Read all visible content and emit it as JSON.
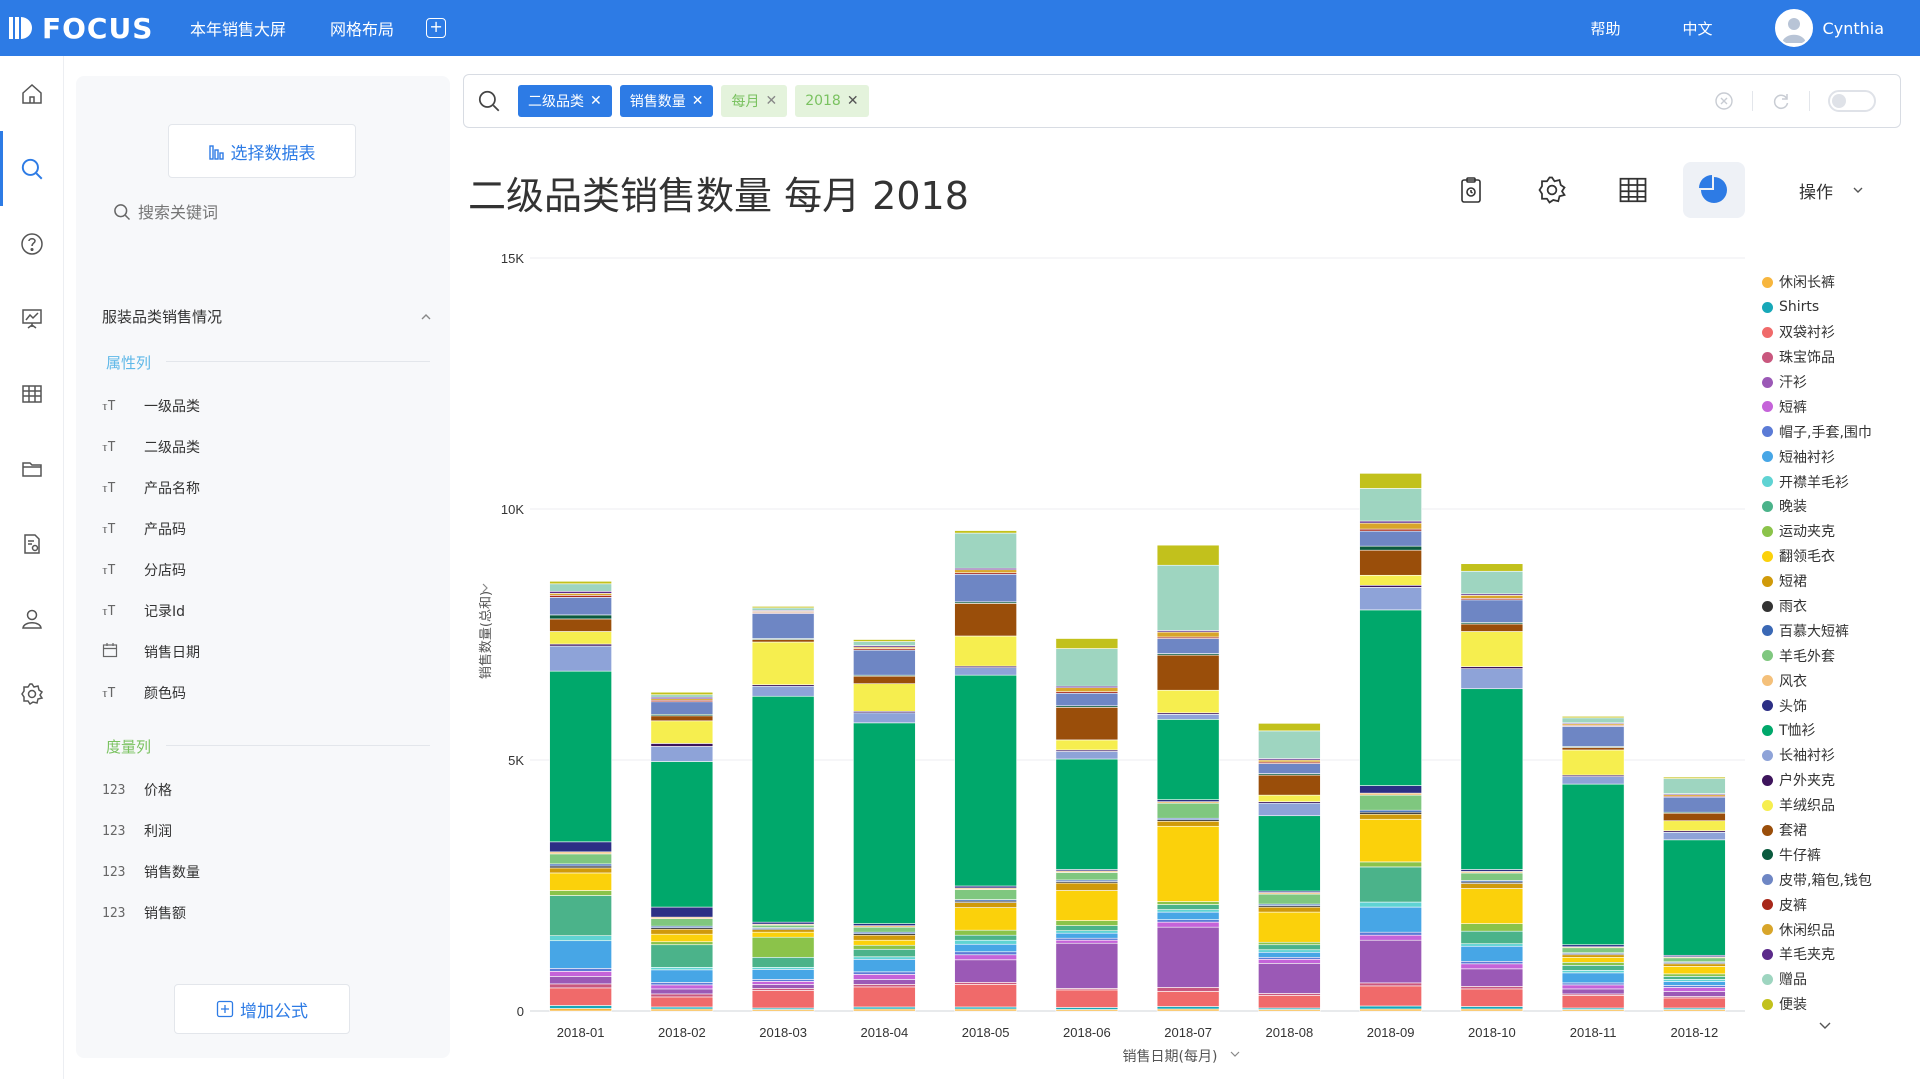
{
  "app": {
    "logo": "FOCUS",
    "nav": [
      "本年销售大屏",
      "网格布局"
    ],
    "help": "帮助",
    "lang": "中文",
    "user": "Cynthia"
  },
  "panel": {
    "select_table": "选择数据表",
    "search_placeholder": "搜索关键词",
    "dataset": "服装品类销售情况",
    "attr_label": "属性列",
    "attrs": [
      "一级品类",
      "二级品类",
      "产品名称",
      "产品码",
      "分店码",
      "记录Id",
      "销售日期",
      "颜色码"
    ],
    "measure_label": "度量列",
    "measures": [
      "价格",
      "利润",
      "销售数量",
      "销售额"
    ],
    "measure_icon": "123",
    "add_formula": "增加公式"
  },
  "search": {
    "tokens": [
      {
        "label": "二级品类",
        "style": "blue"
      },
      {
        "label": "销售数量",
        "style": "blue"
      },
      {
        "label": "每月",
        "style": "green"
      },
      {
        "label": "2018",
        "style": "green"
      }
    ]
  },
  "toolbar": {
    "ops": "操作"
  },
  "chart_data": {
    "type": "bar",
    "stacked": true,
    "title": "二级品类销售数量 每月 2018",
    "xlabel": "销售日期(每月)",
    "ylabel": "销售数量(总和)",
    "ylim": [
      0,
      15000
    ],
    "yticks": [
      0,
      5000,
      10000,
      15000
    ],
    "ytick_labels": [
      "0",
      "5K",
      "10K",
      "15K"
    ],
    "categories": [
      "2018-01",
      "2018-02",
      "2018-03",
      "2018-04",
      "2018-05",
      "2018-06",
      "2018-07",
      "2018-08",
      "2018-09",
      "2018-10",
      "2018-11",
      "2018-12"
    ],
    "series": [
      {
        "name": "休闲长裤",
        "color": "#f7b63e",
        "values": [
          50,
          40,
          30,
          40,
          40,
          30,
          40,
          30,
          40,
          40,
          30,
          30
        ]
      },
      {
        "name": "Shirts",
        "color": "#17a8b8",
        "values": [
          60,
          40,
          30,
          40,
          40,
          40,
          50,
          30,
          60,
          50,
          30,
          30
        ]
      },
      {
        "name": "双袋衬衫",
        "color": "#f06a6a",
        "values": [
          350,
          200,
          350,
          400,
          450,
          350,
          300,
          250,
          400,
          350,
          250,
          200
        ]
      },
      {
        "name": "珠宝饰品",
        "color": "#c9577e",
        "values": [
          80,
          60,
          40,
          50,
          40,
          30,
          80,
          40,
          60,
          50,
          30,
          30
        ]
      },
      {
        "name": "汗衫",
        "color": "#9b59b6",
        "values": [
          150,
          100,
          80,
          100,
          450,
          900,
          1200,
          600,
          850,
          350,
          100,
          100
        ]
      },
      {
        "name": "短裤",
        "color": "#c563d9",
        "values": [
          100,
          80,
          60,
          100,
          100,
          60,
          100,
          80,
          100,
          100,
          80,
          80
        ]
      },
      {
        "name": "帽子,手套,围巾",
        "color": "#5b7bd6",
        "values": [
          60,
          50,
          40,
          50,
          60,
          40,
          50,
          40,
          60,
          50,
          40,
          40
        ]
      },
      {
        "name": "短袖衬衫",
        "color": "#47a6e6",
        "values": [
          550,
          250,
          200,
          250,
          150,
          100,
          150,
          100,
          500,
          300,
          200,
          80
        ]
      },
      {
        "name": "开襟羊毛衫",
        "color": "#5fd3d3",
        "values": [
          100,
          50,
          40,
          50,
          80,
          50,
          50,
          50,
          100,
          50,
          50,
          40
        ]
      },
      {
        "name": "晚装",
        "color": "#4bb38a",
        "values": [
          800,
          450,
          200,
          150,
          100,
          100,
          100,
          100,
          700,
          250,
          100,
          60
        ]
      },
      {
        "name": "运动夹克",
        "color": "#8bc34a",
        "values": [
          100,
          60,
          400,
          80,
          100,
          100,
          60,
          50,
          100,
          150,
          60,
          50
        ]
      },
      {
        "name": "翻领毛衣",
        "color": "#fbd10b",
        "values": [
          350,
          150,
          100,
          100,
          450,
          600,
          1500,
          600,
          850,
          700,
          100,
          150
        ]
      },
      {
        "name": "短裙",
        "color": "#d09a0a",
        "values": [
          100,
          100,
          50,
          100,
          100,
          150,
          100,
          100,
          100,
          100,
          50,
          50
        ]
      },
      {
        "name": "雨衣",
        "color": "#333333",
        "values": [
          40,
          30,
          20,
          30,
          30,
          30,
          30,
          30,
          40,
          30,
          20,
          20
        ]
      },
      {
        "name": "百慕大短裤",
        "color": "#3a68b5",
        "values": [
          40,
          30,
          20,
          30,
          30,
          30,
          30,
          30,
          40,
          30,
          20,
          20
        ]
      },
      {
        "name": "羊毛外套",
        "color": "#7fc77f",
        "values": [
          200,
          150,
          50,
          100,
          200,
          150,
          300,
          200,
          300,
          150,
          100,
          80
        ]
      },
      {
        "name": "风衣",
        "color": "#f4c07a",
        "values": [
          40,
          30,
          20,
          30,
          30,
          30,
          30,
          30,
          40,
          30,
          20,
          20
        ]
      },
      {
        "name": "头饰",
        "color": "#2c2f85",
        "values": [
          200,
          200,
          40,
          40,
          40,
          30,
          40,
          30,
          150,
          40,
          40,
          30
        ]
      },
      {
        "name": "T恤衫",
        "color": "#00a86b",
        "values": [
          3400,
          2900,
          4500,
          4000,
          4200,
          2200,
          1600,
          1500,
          3500,
          3600,
          3200,
          2300
        ]
      },
      {
        "name": "长袖衬衫",
        "color": "#8ea3d8",
        "values": [
          500,
          300,
          200,
          200,
          150,
          150,
          100,
          250,
          450,
          400,
          150,
          150
        ]
      },
      {
        "name": "户外夹克",
        "color": "#3d145c",
        "values": [
          40,
          60,
          30,
          30,
          30,
          30,
          30,
          30,
          40,
          40,
          30,
          30
        ]
      },
      {
        "name": "羊绒织品",
        "color": "#f6ee4f",
        "values": [
          250,
          450,
          850,
          550,
          600,
          200,
          450,
          130,
          200,
          700,
          500,
          200
        ]
      },
      {
        "name": "套裙",
        "color": "#9a4e0a",
        "values": [
          250,
          100,
          50,
          150,
          650,
          650,
          700,
          400,
          500,
          150,
          50,
          150
        ]
      },
      {
        "name": "牛仔裤",
        "color": "#0a5a3e",
        "values": [
          80,
          30,
          20,
          20,
          30,
          30,
          30,
          30,
          80,
          30,
          20,
          20
        ]
      },
      {
        "name": "皮带,箱包,钱包",
        "color": "#6e86c4",
        "values": [
          350,
          250,
          500,
          500,
          550,
          250,
          300,
          200,
          300,
          450,
          400,
          300
        ]
      },
      {
        "name": "皮裤",
        "color": "#a8281a",
        "values": [
          40,
          30,
          20,
          30,
          30,
          30,
          30,
          30,
          40,
          30,
          20,
          20
        ]
      },
      {
        "name": "休闲织品",
        "color": "#d8a52a",
        "values": [
          40,
          30,
          20,
          30,
          60,
          80,
          100,
          40,
          120,
          60,
          30,
          30
        ]
      },
      {
        "name": "羊毛夹克",
        "color": "#5b2a8a",
        "values": [
          40,
          30,
          20,
          30,
          30,
          30,
          30,
          30,
          40,
          30,
          20,
          20
        ]
      },
      {
        "name": "赠品",
        "color": "#9ed5c0",
        "values": [
          150,
          50,
          50,
          80,
          700,
          750,
          1300,
          550,
          650,
          450,
          100,
          300
        ]
      },
      {
        "name": "便装",
        "color": "#c2c11c",
        "values": [
          50,
          50,
          30,
          40,
          50,
          200,
          400,
          150,
          300,
          150,
          30,
          30
        ]
      }
    ]
  }
}
